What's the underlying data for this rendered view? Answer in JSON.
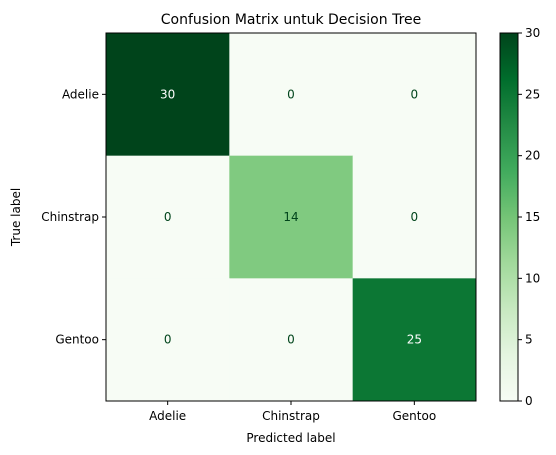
{
  "chart_data": {
    "type": "heatmap",
    "title": "Confusion Matrix untuk Decision Tree",
    "xlabel": "Predicted label",
    "ylabel": "True label",
    "x_categories": [
      "Adelie",
      "Chinstrap",
      "Gentoo"
    ],
    "y_categories": [
      "Adelie",
      "Chinstrap",
      "Gentoo"
    ],
    "values": [
      [
        30,
        0,
        0
      ],
      [
        0,
        14,
        0
      ],
      [
        0,
        0,
        25
      ]
    ],
    "colormap": "Greens",
    "colorbar": {
      "range": [
        0,
        30
      ],
      "ticks": [
        0,
        5,
        10,
        15,
        20,
        25,
        30
      ]
    },
    "grid": false
  }
}
